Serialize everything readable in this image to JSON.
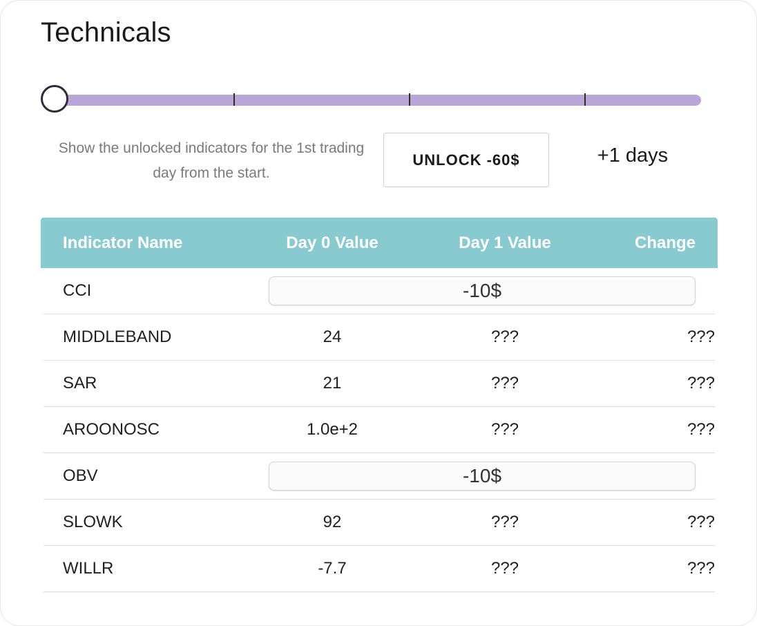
{
  "title": "Technicals",
  "slider": {
    "value_fraction": 0,
    "stops": 5,
    "track_color": "#b9a5d6"
  },
  "help_text": "Show the unlocked indicators for the 1st trading day from the start.",
  "unlock_button": "UNLOCK -60$",
  "days_label": "+1 days",
  "table": {
    "header_color": "#89c9d0",
    "headers": {
      "name": "Indicator Name",
      "day0": "Day 0 Value",
      "day1": "Day 1 Value",
      "change": "Change"
    },
    "rows": [
      {
        "name": "CCI",
        "locked": true,
        "unlock_label": "-10$"
      },
      {
        "name": "MIDDLEBAND",
        "locked": false,
        "day0": "24",
        "day1": "???",
        "change": "???"
      },
      {
        "name": "SAR",
        "locked": false,
        "day0": "21",
        "day1": "???",
        "change": "???"
      },
      {
        "name": "AROONOSC",
        "locked": false,
        "day0": "1.0e+2",
        "day1": "???",
        "change": "???"
      },
      {
        "name": "OBV",
        "locked": true,
        "unlock_label": "-10$"
      },
      {
        "name": "SLOWK",
        "locked": false,
        "day0": "92",
        "day1": "???",
        "change": "???"
      },
      {
        "name": "WILLR",
        "locked": false,
        "day0": "-7.7",
        "day1": "???",
        "change": "???"
      }
    ]
  }
}
